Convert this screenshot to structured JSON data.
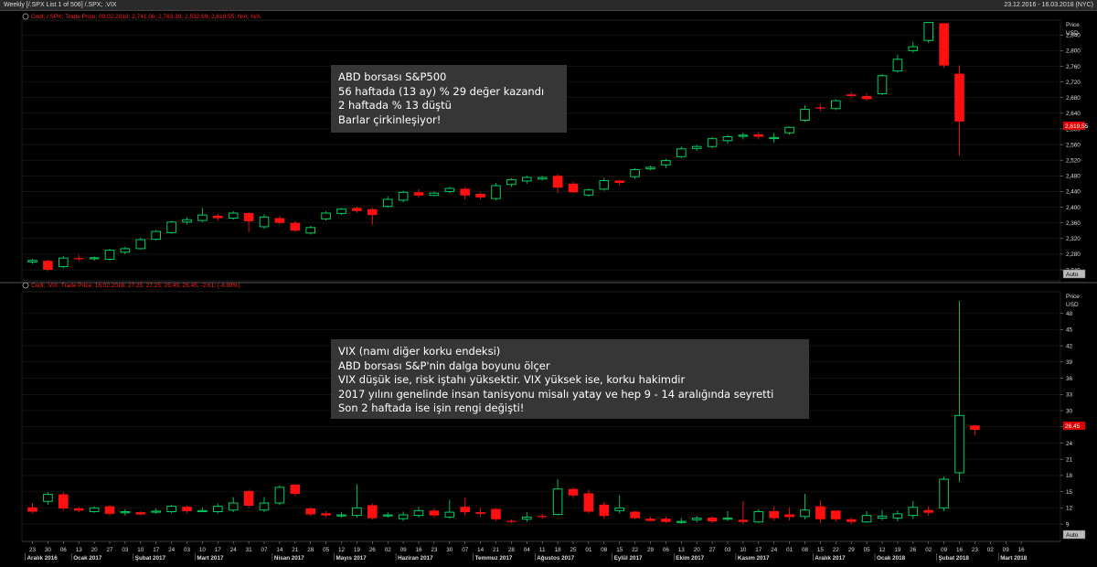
{
  "window": {
    "title": "Weekly [/.SPX List 1 of 506] /.SPX; .VIX",
    "date_range": "23.12.2016 - 16.03.2018 (NYC)"
  },
  "colors": {
    "up": "#00d060",
    "down": "#ff1010",
    "background": "#000000",
    "grid": "#1e1e1e"
  },
  "top_panel": {
    "legend": "Cndl; /.SPX; Trade Price; 09.02.2018; 2,741.06; 2,763.39; 2,532.69; 2,619.55; N/A; N/A",
    "price_label": "Price",
    "currency_label": "USD",
    "last_value": "2,619.55",
    "auto_label": "Auto",
    "annotation": [
      "ABD borsası S&P500",
      "56 haftada (13 ay) % 29 değer kazandı",
      "2 haftada % 13 düştü",
      "Barlar çirkinleşiyor!"
    ]
  },
  "bottom_panel": {
    "legend": "Cndl; .VIX; Trade Price; 16.02.2018; 27.25; 27.25; 25.49; 26.45; -2.61; (-8.98%)",
    "price_label": "Price",
    "currency_label": "USD",
    "last_value": "26.45",
    "auto_label": "Auto",
    "annotation": [
      "VIX (namı diğer korku endeksi)",
      "ABD borsası S&P'nin dalga boyunu ölçer",
      "VIX düşük ise, risk iştahı yüksektir. VIX yüksek ise, korku hakimdir",
      "2017 yılını genelinde insan tanisyonu misalı yatay ve hep 9 - 14 aralığında seyretti",
      "Son 2 haftada ise işin rengi değişti!"
    ]
  },
  "x_axis": {
    "day_labels": [
      "23",
      "30",
      "06",
      "13",
      "20",
      "27",
      "03",
      "10",
      "17",
      "24",
      "03",
      "10",
      "17",
      "24",
      "31",
      "07",
      "14",
      "21",
      "28",
      "05",
      "12",
      "19",
      "26",
      "02",
      "09",
      "16",
      "23",
      "30",
      "07",
      "14",
      "21",
      "28",
      "04",
      "11",
      "18",
      "25",
      "01",
      "08",
      "15",
      "22",
      "29",
      "06",
      "13",
      "20",
      "27",
      "03",
      "10",
      "17",
      "24",
      "01",
      "08",
      "15",
      "22",
      "29",
      "05",
      "12",
      "19",
      "26",
      "02",
      "09",
      "16",
      "23",
      "02",
      "09",
      "16"
    ],
    "month_labels": [
      {
        "label": "Aralık 2016",
        "index": 0
      },
      {
        "label": "Ocak 2017",
        "index": 3
      },
      {
        "label": "Şubat 2017",
        "index": 7
      },
      {
        "label": "Mart 2017",
        "index": 11
      },
      {
        "label": "Nisan 2017",
        "index": 16
      },
      {
        "label": "Mayıs 2017",
        "index": 20
      },
      {
        "label": "Haziran 2017",
        "index": 24
      },
      {
        "label": "Temmuz 2017",
        "index": 29
      },
      {
        "label": "Ağustos 2017",
        "index": 33
      },
      {
        "label": "Eylül 2017",
        "index": 38
      },
      {
        "label": "Ekim 2017",
        "index": 42
      },
      {
        "label": "Kasım 2017",
        "index": 46
      },
      {
        "label": "Aralık 2017",
        "index": 51
      },
      {
        "label": "Ocak 2018",
        "index": 55
      },
      {
        "label": "Şubat 2018",
        "index": 59
      },
      {
        "label": "Mart 2018",
        "index": 63
      }
    ]
  },
  "chart_data": [
    {
      "type": "candlestick",
      "name": "/.SPX",
      "y_ticks": [
        2240,
        2280,
        2320,
        2360,
        2400,
        2440,
        2480,
        2520,
        2560,
        2600,
        2640,
        2680,
        2720,
        2760,
        2800,
        2840
      ],
      "ylim": [
        2212,
        2878
      ],
      "candles": [
        [
          2260,
          2264,
          2255,
          2268
        ],
        [
          2263,
          2240,
          2236,
          2266
        ],
        [
          2248,
          2270,
          2244,
          2275
        ],
        [
          2270,
          2268,
          2262,
          2278
        ],
        [
          2268,
          2271,
          2263,
          2274
        ],
        [
          2267,
          2290,
          2263,
          2294
        ],
        [
          2285,
          2294,
          2280,
          2299
        ],
        [
          2294,
          2317,
          2292,
          2322
        ],
        [
          2318,
          2338,
          2315,
          2342
        ],
        [
          2335,
          2362,
          2332,
          2365
        ],
        [
          2362,
          2368,
          2356,
          2374
        ],
        [
          2366,
          2380,
          2362,
          2398
        ],
        [
          2378,
          2372,
          2365,
          2384
        ],
        [
          2372,
          2385,
          2368,
          2390
        ],
        [
          2385,
          2364,
          2336,
          2388
        ],
        [
          2350,
          2375,
          2345,
          2382
        ],
        [
          2372,
          2360,
          2355,
          2378
        ],
        [
          2360,
          2340,
          2337,
          2365
        ],
        [
          2334,
          2348,
          2330,
          2352
        ],
        [
          2370,
          2385,
          2366,
          2390
        ],
        [
          2384,
          2395,
          2380,
          2398
        ],
        [
          2398,
          2390,
          2385,
          2402
        ],
        [
          2395,
          2380,
          2355,
          2398
        ],
        [
          2402,
          2420,
          2398,
          2428
        ],
        [
          2418,
          2438,
          2412,
          2442
        ],
        [
          2438,
          2430,
          2424,
          2446
        ],
        [
          2430,
          2436,
          2428,
          2440
        ],
        [
          2440,
          2448,
          2436,
          2452
        ],
        [
          2447,
          2430,
          2420,
          2452
        ],
        [
          2434,
          2425,
          2420,
          2438
        ],
        [
          2422,
          2455,
          2418,
          2462
        ],
        [
          2458,
          2470,
          2452,
          2474
        ],
        [
          2467,
          2476,
          2460,
          2480
        ],
        [
          2472,
          2476,
          2468,
          2480
        ],
        [
          2480,
          2450,
          2436,
          2485
        ],
        [
          2460,
          2438,
          2436,
          2465
        ],
        [
          2431,
          2444,
          2427,
          2448
        ],
        [
          2446,
          2468,
          2442,
          2475
        ],
        [
          2468,
          2462,
          2455,
          2470
        ],
        [
          2478,
          2496,
          2472,
          2500
        ],
        [
          2498,
          2502,
          2494,
          2506
        ],
        [
          2508,
          2519,
          2500,
          2524
        ],
        [
          2529,
          2549,
          2526,
          2555
        ],
        [
          2550,
          2555,
          2544,
          2559
        ],
        [
          2555,
          2575,
          2550,
          2580
        ],
        [
          2570,
          2580,
          2562,
          2585
        ],
        [
          2582,
          2584,
          2573,
          2590
        ],
        [
          2586,
          2580,
          2573,
          2592
        ],
        [
          2578,
          2578,
          2565,
          2590
        ],
        [
          2590,
          2604,
          2585,
          2606
        ],
        [
          2622,
          2650,
          2618,
          2660
        ],
        [
          2655,
          2652,
          2645,
          2663
        ],
        [
          2652,
          2672,
          2648,
          2676
        ],
        [
          2688,
          2684,
          2680,
          2694
        ],
        [
          2684,
          2676,
          2672,
          2692
        ],
        [
          2690,
          2736,
          2686,
          2740
        ],
        [
          2748,
          2778,
          2744,
          2790
        ],
        [
          2800,
          2810,
          2795,
          2822
        ],
        [
          2826,
          2872,
          2820,
          2872
        ],
        [
          2870,
          2762,
          2756,
          2870
        ],
        [
          2741,
          2619,
          2532,
          2763
        ]
      ]
    },
    {
      "type": "candlestick",
      "name": ".VIX",
      "y_ticks": [
        9,
        12,
        15,
        18,
        21,
        24,
        27,
        30,
        33,
        36,
        39,
        42,
        45,
        48
      ],
      "ylim": [
        5.8,
        52
      ],
      "candles": [
        [
          12.1,
          11.3,
          11.0,
          12.9
        ],
        [
          13.2,
          14.5,
          12.6,
          14.9
        ],
        [
          14.5,
          11.9,
          11.5,
          14.9
        ],
        [
          11.9,
          11.5,
          11.2,
          12.2
        ],
        [
          11.3,
          12.0,
          11.1,
          12.3
        ],
        [
          12.3,
          10.9,
          10.6,
          12.5
        ],
        [
          11.1,
          11.3,
          10.6,
          11.8
        ],
        [
          11.2,
          10.8,
          10.6,
          11.4
        ],
        [
          11.2,
          11.4,
          10.9,
          11.9
        ],
        [
          11.3,
          12.3,
          11.0,
          12.6
        ],
        [
          12.2,
          11.4,
          11.0,
          12.4
        ],
        [
          11.5,
          11.5,
          11.2,
          12.0
        ],
        [
          11.3,
          12.3,
          11.0,
          12.8
        ],
        [
          11.6,
          12.9,
          11.2,
          14.0
        ],
        [
          15.1,
          12.4,
          12.0,
          15.4
        ],
        [
          11.6,
          12.9,
          11.2,
          14.0
        ],
        [
          12.9,
          15.8,
          12.5,
          16.2
        ],
        [
          16.3,
          14.6,
          14.2,
          16.3
        ],
        [
          11.9,
          10.8,
          10.5,
          12.2
        ],
        [
          11.0,
          10.6,
          10.3,
          11.4
        ],
        [
          10.5,
          10.7,
          10.2,
          11.2
        ],
        [
          10.6,
          12.0,
          10.2,
          16.4
        ],
        [
          12.5,
          10.1,
          9.8,
          12.8
        ],
        [
          10.5,
          10.7,
          10.2,
          11.2
        ],
        [
          10.0,
          10.7,
          9.6,
          11.3
        ],
        [
          10.6,
          11.5,
          10.2,
          12.2
        ],
        [
          11.5,
          10.6,
          10.2,
          11.9
        ],
        [
          10.3,
          11.2,
          10.0,
          13.5
        ],
        [
          12.2,
          11.2,
          10.6,
          13.9
        ],
        [
          11.2,
          10.9,
          10.4,
          12.0
        ],
        [
          11.8,
          9.9,
          9.6,
          12.0
        ],
        [
          9.6,
          9.5,
          9.2,
          9.9
        ],
        [
          9.9,
          10.3,
          9.4,
          11.2
        ],
        [
          10.5,
          10.4,
          10.0,
          10.9
        ],
        [
          10.8,
          15.5,
          10.6,
          17.3
        ],
        [
          15.5,
          14.3,
          13.8,
          15.8
        ],
        [
          14.7,
          11.3,
          11.0,
          15.4
        ],
        [
          12.6,
          10.5,
          10.0,
          13.1
        ],
        [
          11.5,
          12.0,
          11.0,
          14.3
        ],
        [
          11.3,
          10.1,
          9.9,
          11.4
        ],
        [
          10.0,
          9.6,
          9.5,
          10.4
        ],
        [
          10.0,
          9.4,
          9.2,
          10.4
        ],
        [
          9.4,
          9.5,
          9.1,
          10.1
        ],
        [
          9.8,
          10.1,
          9.3,
          10.5
        ],
        [
          10.2,
          9.5,
          9.2,
          10.5
        ],
        [
          10.0,
          10.1,
          9.6,
          11.4
        ],
        [
          9.8,
          9.4,
          9.0,
          13.3
        ],
        [
          9.4,
          11.3,
          9.2,
          11.8
        ],
        [
          11.4,
          10.1,
          9.6,
          12.3
        ],
        [
          10.8,
          10.3,
          9.7,
          12.1
        ],
        [
          10.4,
          11.6,
          9.9,
          14.6
        ],
        [
          12.3,
          9.9,
          9.2,
          13.4
        ],
        [
          11.5,
          9.9,
          9.5,
          11.5
        ],
        [
          9.9,
          9.4,
          9.0,
          10.2
        ],
        [
          9.4,
          10.6,
          9.2,
          11.4
        ],
        [
          10.1,
          10.5,
          9.7,
          11.6
        ],
        [
          10.1,
          10.9,
          9.5,
          11.5
        ],
        [
          10.6,
          12.1,
          10.0,
          13.3
        ],
        [
          11.6,
          11.1,
          10.5,
          12.3
        ],
        [
          12.0,
          17.3,
          11.4,
          17.8
        ],
        [
          18.5,
          29.1,
          16.8,
          50.3
        ],
        [
          27.25,
          26.45,
          25.49,
          27.25
        ]
      ]
    }
  ]
}
